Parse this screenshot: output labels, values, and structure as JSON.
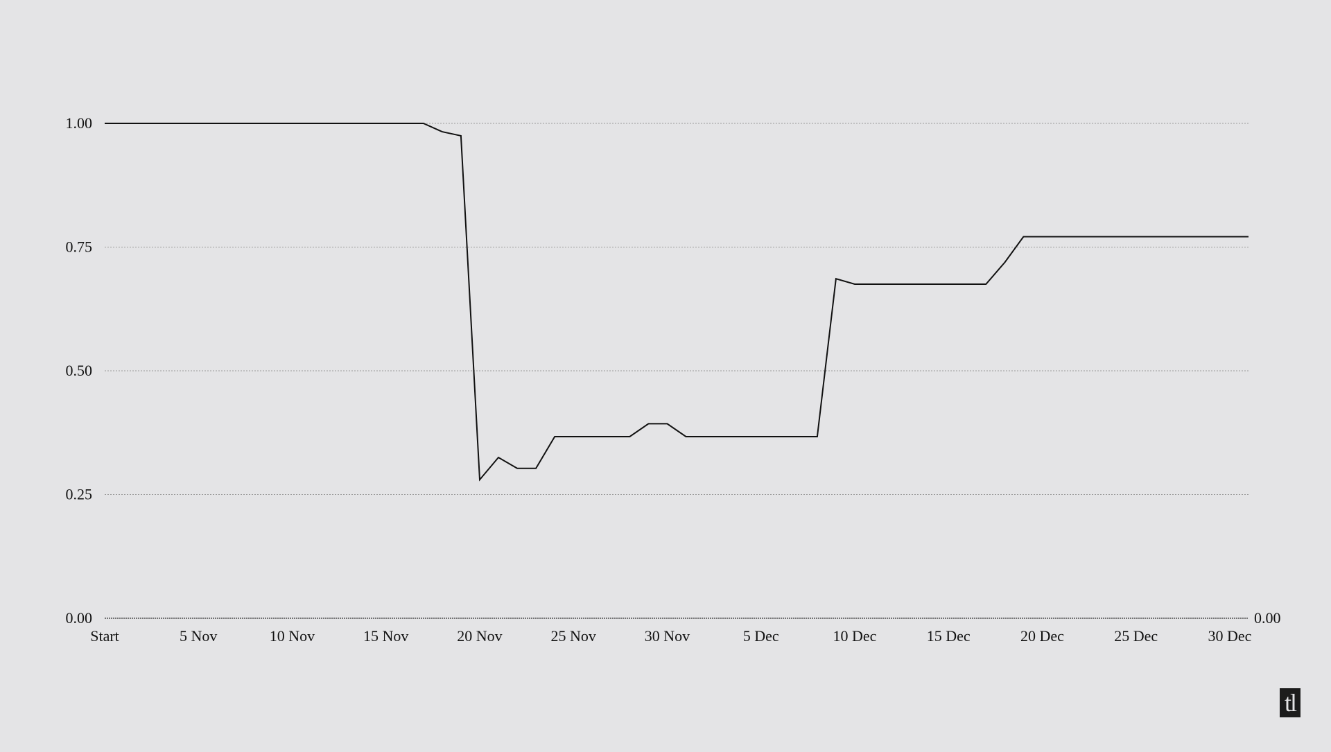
{
  "logo": {
    "text": "tl"
  },
  "chart_data": {
    "type": "line",
    "title": "",
    "xlabel": "",
    "ylabel": "",
    "ylim": [
      0,
      1
    ],
    "yticks": [
      "0.00",
      "0.25",
      "0.50",
      "0.75",
      "1.00"
    ],
    "right_axis_label": "0.00",
    "grid": "horizontal-dotted",
    "line_color": "#111111",
    "x_tick_labels": [
      "Start",
      "5 Nov",
      "10 Nov",
      "15 Nov",
      "20 Nov",
      "25 Nov",
      "30 Nov",
      "5 Dec",
      "10 Dec",
      "15 Dec",
      "20 Dec",
      "25 Dec",
      "30 Dec"
    ],
    "x_tick_dates": [
      "31 Oct",
      "5 Nov",
      "10 Nov",
      "15 Nov",
      "20 Nov",
      "25 Nov",
      "30 Nov",
      "5 Dec",
      "10 Dec",
      "15 Dec",
      "20 Dec",
      "25 Dec",
      "30 Dec"
    ],
    "series": [
      {
        "x": [
          "31 Oct",
          "17 Nov",
          "18 Nov",
          "19 Nov",
          "20 Nov",
          "21 Nov",
          "22 Nov",
          "23 Nov",
          "24 Nov",
          "28 Nov",
          "29 Nov",
          "30 Nov",
          "1 Dec",
          "8 Dec",
          "9 Dec",
          "10 Dec",
          "17 Dec",
          "18 Dec",
          "19 Dec",
          "31 Dec"
        ],
        "values": [
          1.0,
          1.0,
          0.983,
          0.975,
          0.28,
          0.325,
          0.303,
          0.303,
          0.367,
          0.367,
          0.393,
          0.393,
          0.367,
          0.367,
          0.686,
          0.675,
          0.675,
          0.719,
          0.771,
          0.771
        ]
      }
    ]
  }
}
